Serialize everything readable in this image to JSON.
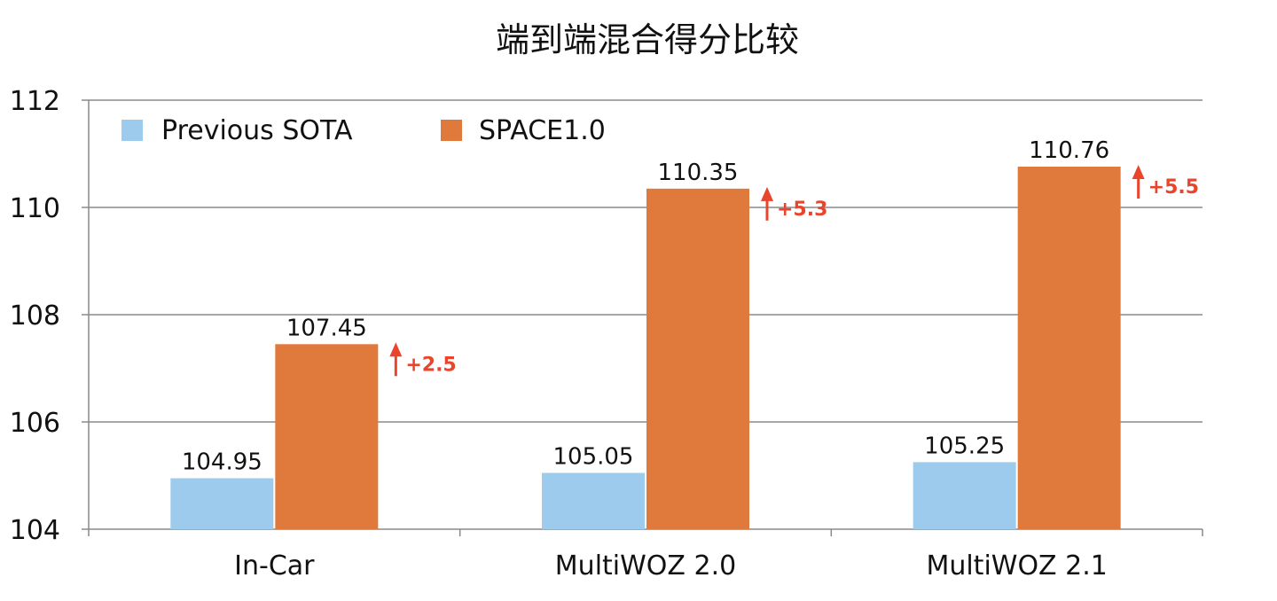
{
  "chart_data": {
    "type": "bar",
    "title": "端到端混合得分比较",
    "categories": [
      "In-Car",
      "MultiWOZ 2.0",
      "MultiWOZ 2.1"
    ],
    "series": [
      {
        "name": "Previous SOTA",
        "values": [
          104.95,
          105.05,
          105.25
        ],
        "color": "#9dcbee"
      },
      {
        "name": "SPACE1.0",
        "values": [
          107.45,
          110.35,
          110.76
        ],
        "color": "#e07a3c"
      }
    ],
    "value_labels": [
      [
        "104.95",
        "105.05",
        "105.25"
      ],
      [
        "107.45",
        "110.35",
        "110.76"
      ]
    ],
    "annotations": [
      "+2.5",
      "+5.3",
      "+5.5"
    ],
    "annotation_color": "#e8452c",
    "ylim": [
      104,
      112
    ],
    "yticks": [
      104,
      106,
      108,
      110,
      112
    ],
    "grid": true,
    "legend": "top-left"
  }
}
